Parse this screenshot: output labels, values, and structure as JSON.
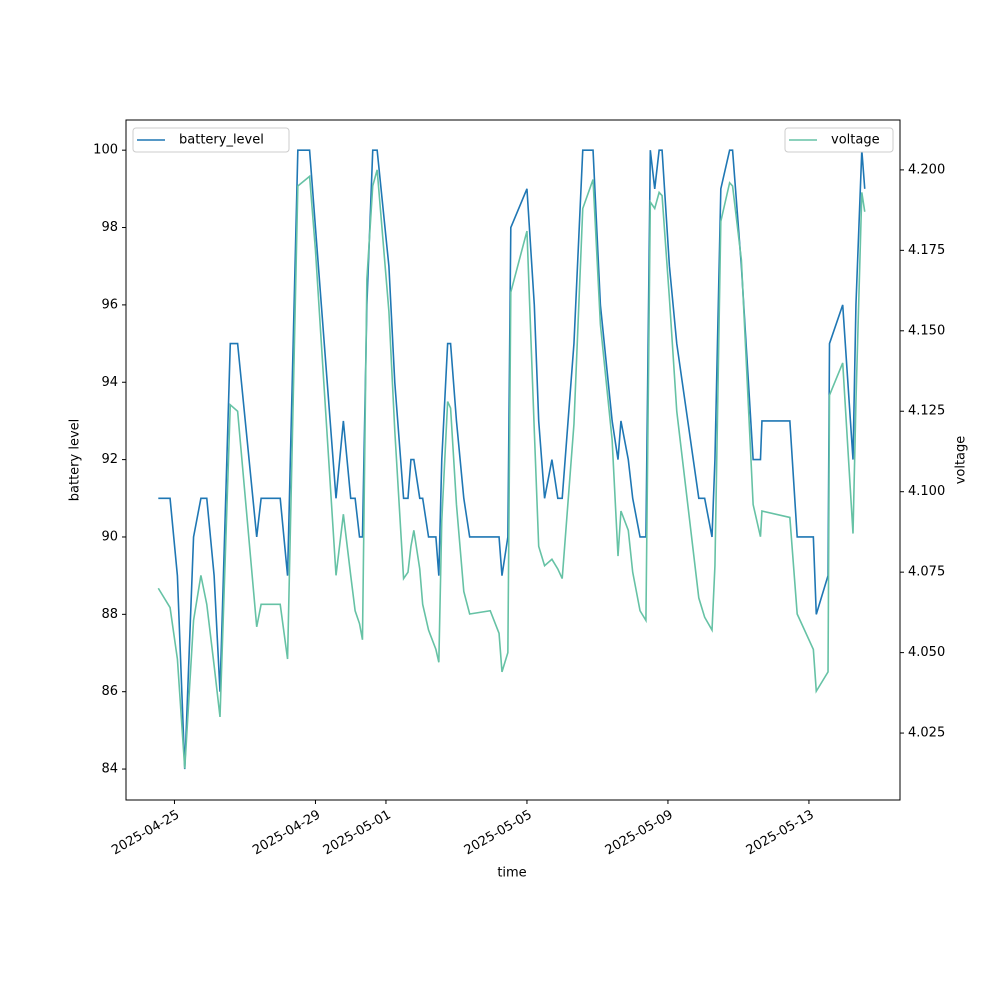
{
  "chart_data": {
    "type": "line",
    "x_label": "time",
    "y_label": "battery level",
    "y2_label": "voltage",
    "x": [
      "2025-04-24T13:00",
      "2025-04-24T21:00",
      "2025-04-25T02:00",
      "2025-04-25T07:00",
      "2025-04-25T13:00",
      "2025-04-25T18:00",
      "2025-04-25T22:00",
      "2025-04-26T03:00",
      "2025-04-26T07:00",
      "2025-04-26T14:00",
      "2025-04-26T19:00",
      "2025-04-27T08:00",
      "2025-04-27T11:00",
      "2025-04-28T00:00",
      "2025-04-28T05:00",
      "2025-04-28T12:00",
      "2025-04-28T20:00",
      "2025-04-29T00:00",
      "2025-04-29T14:00",
      "2025-04-29T19:00",
      "2025-04-30T00:00",
      "2025-04-30T03:00",
      "2025-04-30T06:00",
      "2025-04-30T08:00",
      "2025-04-30T11:00",
      "2025-04-30T15:00",
      "2025-04-30T18:00",
      "2025-05-01T02:00",
      "2025-05-01T06:00",
      "2025-05-01T12:00",
      "2025-05-01T15:00",
      "2025-05-01T17:00",
      "2025-05-01T19:00",
      "2025-05-01T23:00",
      "2025-05-02T01:00",
      "2025-05-02T05:00",
      "2025-05-02T10:00",
      "2025-05-02T12:00",
      "2025-05-02T14:00",
      "2025-05-02T18:00",
      "2025-05-02T20:00",
      "2025-05-03T00:00",
      "2025-05-03T05:00",
      "2025-05-03T09:00",
      "2025-05-03T23:00",
      "2025-05-04T05:00",
      "2025-05-04T07:00",
      "2025-05-04T11:00",
      "2025-05-04T13:00",
      "2025-05-05T00:00",
      "2025-05-05T05:00",
      "2025-05-05T08:00",
      "2025-05-05T12:00",
      "2025-05-05T17:00",
      "2025-05-05T21:00",
      "2025-05-06T00:00",
      "2025-05-06T08:00",
      "2025-05-06T14:00",
      "2025-05-06T21:00",
      "2025-05-07T02:00",
      "2025-05-07T10:00",
      "2025-05-07T14:00",
      "2025-05-07T16:00",
      "2025-05-07T21:00",
      "2025-05-08T00:00",
      "2025-05-08T05:00",
      "2025-05-08T09:00",
      "2025-05-08T12:00",
      "2025-05-08T15:00",
      "2025-05-08T18:00",
      "2025-05-08T20:00",
      "2025-05-09T01:00",
      "2025-05-09T06:00",
      "2025-05-09T21:00",
      "2025-05-10T01:00",
      "2025-05-10T06:00",
      "2025-05-10T08:00",
      "2025-05-10T12:00",
      "2025-05-10T18:00",
      "2025-05-10T20:00",
      "2025-05-11T02:00",
      "2025-05-11T10:00",
      "2025-05-11T15:00",
      "2025-05-11T16:00",
      "2025-05-12T11:00",
      "2025-05-12T16:00",
      "2025-05-13T03:00",
      "2025-05-13T05:00",
      "2025-05-13T13:00",
      "2025-05-13T14:00",
      "2025-05-13T23:00",
      "2025-05-14T06:00",
      "2025-05-14T08:00",
      "2025-05-14T12:00",
      "2025-05-14T14:00"
    ],
    "series": [
      {
        "name": "battery_level",
        "color": "#1f77b4",
        "values": [
          91,
          91,
          89,
          84,
          90,
          91,
          91,
          89,
          86,
          95,
          95,
          90,
          91,
          91,
          89,
          100,
          100,
          98,
          91,
          93,
          91,
          91,
          90,
          90,
          96,
          100,
          100,
          97,
          94,
          91,
          91,
          92,
          92,
          91,
          91,
          90,
          90,
          89,
          92,
          95,
          95,
          93,
          91,
          90,
          90,
          90,
          89,
          90,
          98,
          99,
          96,
          93,
          91,
          92,
          91,
          91,
          95,
          100,
          100,
          96,
          93,
          92,
          93,
          92,
          91,
          90,
          90,
          100,
          99,
          100,
          100,
          97,
          95,
          91,
          91,
          90,
          92,
          99,
          100,
          100,
          97,
          92,
          92,
          93,
          93,
          90,
          90,
          88,
          89,
          95,
          96,
          92,
          96,
          100,
          99
        ]
      },
      {
        "name": "voltage",
        "color": "#66c2a5",
        "axis": "y2",
        "values": [
          4.07,
          4.064,
          4.048,
          4.014,
          4.06,
          4.074,
          4.065,
          4.046,
          4.03,
          4.127,
          4.125,
          4.058,
          4.065,
          4.065,
          4.048,
          4.195,
          4.198,
          4.175,
          4.074,
          4.093,
          4.074,
          4.063,
          4.059,
          4.054,
          4.166,
          4.195,
          4.2,
          4.156,
          4.119,
          4.073,
          4.075,
          4.083,
          4.088,
          4.076,
          4.065,
          4.057,
          4.051,
          4.047,
          4.091,
          4.128,
          4.126,
          4.096,
          4.069,
          4.062,
          4.063,
          4.056,
          4.044,
          4.05,
          4.162,
          4.181,
          4.119,
          4.083,
          4.077,
          4.079,
          4.076,
          4.073,
          4.121,
          4.188,
          4.197,
          4.152,
          4.116,
          4.08,
          4.094,
          4.088,
          4.075,
          4.063,
          4.06,
          4.19,
          4.188,
          4.193,
          4.192,
          4.16,
          4.125,
          4.067,
          4.061,
          4.057,
          4.077,
          4.184,
          4.196,
          4.195,
          4.172,
          4.096,
          4.086,
          4.094,
          4.092,
          4.062,
          4.051,
          4.038,
          4.044,
          4.13,
          4.14,
          4.087,
          4.128,
          4.193,
          4.187
        ]
      }
    ],
    "xlim": [
      "2025-04-23T15:00",
      "2025-05-15T14:00"
    ],
    "xticks": [
      "2025-04-25",
      "2025-04-29",
      "2025-05-01",
      "2025-05-05",
      "2025-05-09",
      "2025-05-13"
    ],
    "ylim": [
      83.2,
      100.78
    ],
    "yticks": [
      84,
      86,
      88,
      90,
      92,
      94,
      96,
      98,
      100
    ],
    "y2lim": [
      4.0042,
      4.2155
    ],
    "y2ticks": [
      4.025,
      {
        "value": 4.05,
        "label": "4.050"
      },
      4.075,
      {
        "value": 4.1,
        "label": "4.100"
      },
      4.125,
      {
        "value": 4.15,
        "label": "4.150"
      },
      4.175,
      {
        "value": 4.2,
        "label": "4.200"
      }
    ],
    "legend": [
      "upper left",
      "upper right"
    ]
  }
}
